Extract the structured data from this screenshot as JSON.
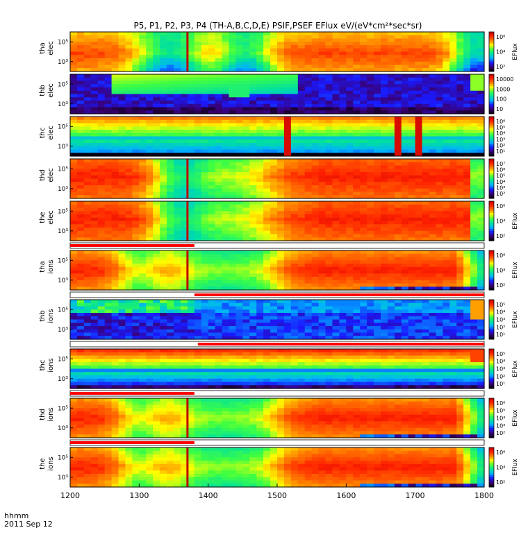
{
  "title": "P5, P1, P2, P3, P4 (TH-A,B,C,D,E) PSIF,PSEF EFlux eV/(eV*cm²*sec*sr)",
  "footer": {
    "time_label": "hhmm",
    "date_label": "2011 Sep 12"
  },
  "chart_data": {
    "type": "heatmap",
    "x_range": [
      1200,
      1800
    ],
    "x_tick_labels": [
      "1200",
      "1300",
      "1400",
      "1500",
      "1600",
      "1700",
      "1800"
    ],
    "colors": {
      "colormap": [
        "#000000",
        "#3a0070",
        "#1a1aff",
        "#00b0ff",
        "#00e0a0",
        "#40ff40",
        "#ffff00",
        "#ff8000",
        "#ff2000",
        "#c00000"
      ],
      "flag_red": "#ff0000",
      "flag_white": "#ffffff",
      "marker": "#c00000"
    },
    "panels": [
      {
        "probe": "tha",
        "species": "elec",
        "y_ticks": [
          "10⁵",
          "10³"
        ],
        "cbar_ticks": [
          "10⁶",
          "10⁴",
          "10²"
        ],
        "cbar_label": "EFlux",
        "profile": "cold_bands",
        "marker_time": 1370,
        "has_flag_bar": false
      },
      {
        "probe": "thb",
        "species": "elec",
        "y_ticks": [
          "10⁵",
          "10³"
        ],
        "cbar_ticks": [
          "10000",
          "1000",
          "100",
          "10"
        ],
        "cbar_label": "",
        "profile": "sparse_elec",
        "marker_time": null,
        "has_flag_bar": false
      },
      {
        "probe": "thc",
        "species": "elec",
        "y_ticks": [
          "10⁵",
          "10³"
        ],
        "cbar_ticks": [
          "10⁶",
          "10⁵",
          "10⁴",
          "10³",
          "10²",
          "10¹"
        ],
        "cbar_label": "",
        "profile": "thc_elec",
        "marker_time": null,
        "has_flag_bar": false
      },
      {
        "probe": "thd",
        "species": "elec",
        "y_ticks": [
          "10⁵",
          "10³"
        ],
        "cbar_ticks": [
          "10⁷",
          "10⁶",
          "10⁵",
          "10⁴",
          "10³",
          "10²"
        ],
        "cbar_label": "",
        "profile": "warm_bands",
        "marker_time": 1370,
        "has_flag_bar": false
      },
      {
        "probe": "the",
        "species": "elec",
        "y_ticks": [
          "10⁵",
          "10³"
        ],
        "cbar_ticks": [
          "10⁶",
          "10⁴",
          "10²"
        ],
        "cbar_label": "EFlux",
        "profile": "warm_bands",
        "marker_time": 1370,
        "has_flag_bar": true,
        "flag_split": 1380
      },
      {
        "probe": "tha",
        "species": "ions",
        "y_ticks": [
          "10⁵",
          "10³"
        ],
        "cbar_ticks": [
          "10⁶",
          "10⁴",
          "10²"
        ],
        "cbar_label": "EFlux",
        "profile": "hot_ions",
        "marker_time": 1370,
        "has_flag_bar": true,
        "flag_split": 1380
      },
      {
        "probe": "thb",
        "species": "ions",
        "y_ticks": [
          "10⁵",
          "10³"
        ],
        "cbar_ticks": [
          "10⁵",
          "10⁴",
          "10³",
          "10²",
          "10¹"
        ],
        "cbar_label": "EFlux",
        "profile": "sparse_ions",
        "marker_time": null,
        "has_flag_bar": true,
        "flag_split": 1385
      },
      {
        "probe": "thc",
        "species": "ions",
        "y_ticks": [
          "10⁵",
          "10³"
        ],
        "cbar_ticks": [
          "10⁵",
          "10⁴",
          "10³",
          "10²",
          "10¹"
        ],
        "cbar_label": "EFlux",
        "profile": "thc_ions",
        "marker_time": null,
        "has_flag_bar": true,
        "flag_split": 1380
      },
      {
        "probe": "thd",
        "species": "ions",
        "y_ticks": [
          "10⁵",
          "10³"
        ],
        "cbar_ticks": [
          "10⁶",
          "10⁵",
          "10⁴",
          "10³",
          "10²"
        ],
        "cbar_label": "EFlux",
        "profile": "hot_ions",
        "marker_time": 1370,
        "has_flag_bar": true,
        "flag_split": 1380
      },
      {
        "probe": "the",
        "species": "ions",
        "y_ticks": [
          "10⁵",
          "10³"
        ],
        "cbar_ticks": [
          "10⁶",
          "10⁴",
          "10²"
        ],
        "cbar_label": "EFlux",
        "profile": "hot_ions",
        "marker_time": 1370,
        "has_flag_bar": false
      }
    ]
  }
}
